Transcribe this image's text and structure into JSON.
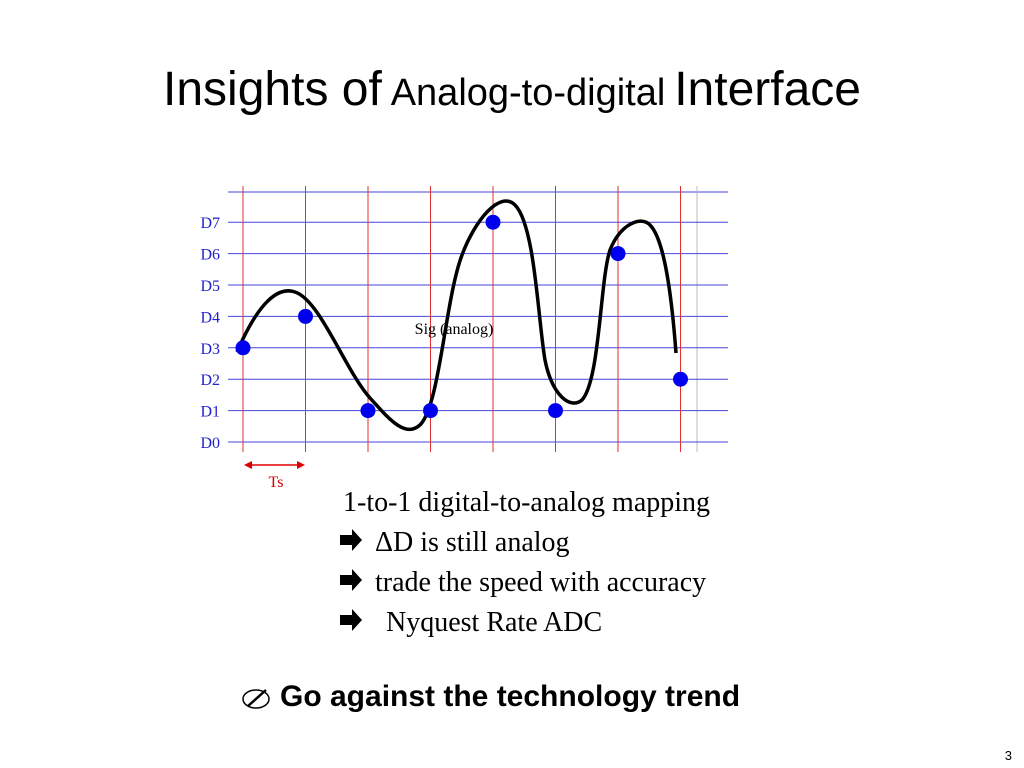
{
  "title": {
    "parts": [
      "Insights of",
      "Analog-to-digital",
      "Interface"
    ]
  },
  "diagram": {
    "levels": [
      "D0",
      "D1",
      "D2",
      "D3",
      "D4",
      "D5",
      "D6",
      "D7"
    ],
    "samples": [
      3,
      4,
      1,
      1,
      7,
      1,
      6,
      2
    ],
    "signal_label": "Sig (analog)",
    "period_label": "Ts"
  },
  "bullets": [
    "1-to-1 digital-to-analog mapping",
    "ΔD is still analog",
    "trade the speed with accuracy",
    "Nyquest Rate ADC"
  ],
  "conclusion": "Go against the technology trend",
  "page_number": "3"
}
